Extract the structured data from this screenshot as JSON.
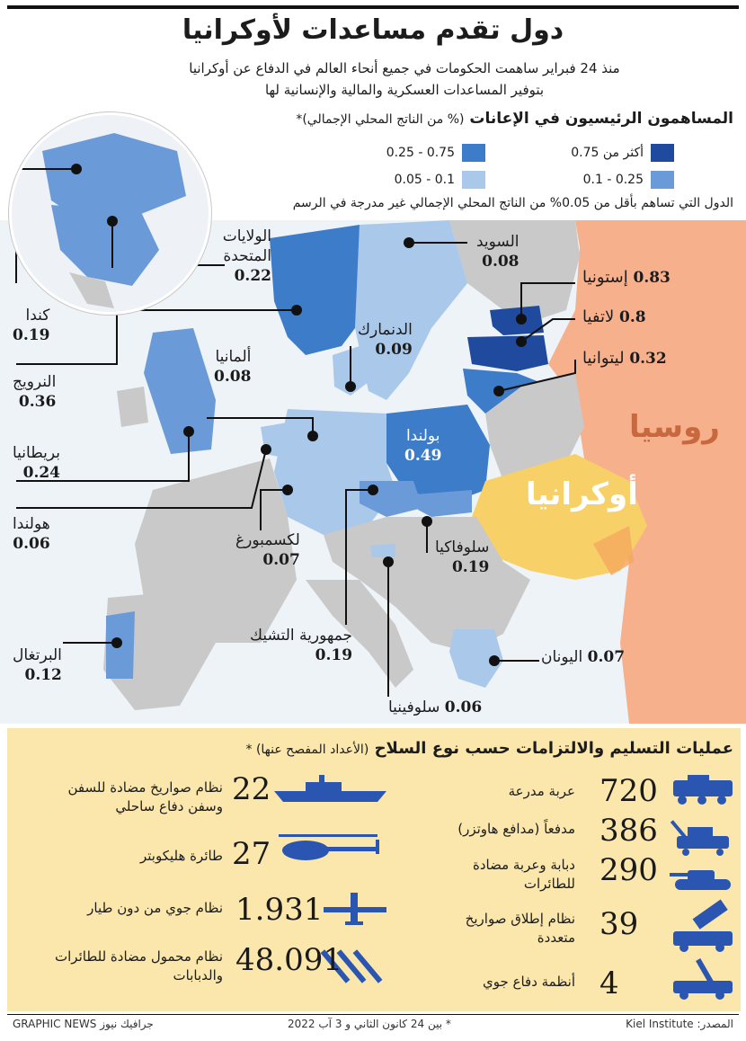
{
  "header": {
    "title": "دول تقدم مساعدات لأوكرانيا",
    "subtitle_line1": "منذ 24 فبراير ساهمت الحكومات في جميع أنحاء العالم في الدفاع عن أوكرانيا",
    "subtitle_line2": "بتوفير المساعدات العسكرية والمالية والإنسانية لها"
  },
  "legend": {
    "title": "المساهمون الرئيسيون في الإعانات",
    "title_paren": "(% من الناتج المحلي الإجمالي)*",
    "items": [
      {
        "label": "أكثر من 0.75",
        "color": "#1f4a9e"
      },
      {
        "label": "0.75 - 0.25",
        "color": "#3d7cc9"
      },
      {
        "label": "0.25 - 0.1",
        "color": "#6a9bd8"
      },
      {
        "label": "0.1 - 0.05",
        "color": "#a9c8ea"
      }
    ],
    "note": "الدول التي تساهم بأقل من 0.05% من الناتج المحلي الإجمالي غير مدرجة في الرسم"
  },
  "map": {
    "countries": [
      {
        "name": "الولايات",
        "name2": "المتحدة",
        "value": "0.22"
      },
      {
        "name": "كندا",
        "value": "0.19"
      },
      {
        "name": "النرويج",
        "value": "0.36"
      },
      {
        "name": "بريطانيا",
        "value": "0.24"
      },
      {
        "name": "هولندا",
        "value": "0.06"
      },
      {
        "name": "البرتغال",
        "value": "0.12"
      },
      {
        "name": "السويد",
        "value": "0.08"
      },
      {
        "name": "إستونيا",
        "value": "0.83"
      },
      {
        "name": "لاتفيا",
        "value": "0.8"
      },
      {
        "name": "ليتوانيا",
        "value": "0.32"
      },
      {
        "name": "الدنمارك",
        "value": "0.09"
      },
      {
        "name": "ألمانيا",
        "value": "0.08"
      },
      {
        "name": "بولندا",
        "value": "0.49"
      },
      {
        "name": "لكسمبورغ",
        "value": "0.07"
      },
      {
        "name": "سلوفاكيا",
        "value": "0.19"
      },
      {
        "name": "جمهورية التشيك",
        "value": "0.19"
      },
      {
        "name": "اليونان",
        "value": "0.07"
      },
      {
        "name": "سلوفينيا",
        "value": "0.06"
      }
    ],
    "russia": "روسيا",
    "ukraine": "أوكرانيا"
  },
  "weapons": {
    "title": "عمليات التسليم والالتزامات حسب نوع السلاح",
    "title_paren": "(الأعداد المفصح عنها) *",
    "left": [
      {
        "num": "22",
        "label1": "نظام صواريخ مضادة للسفن",
        "label2": "وسفن دفاع ساحلي",
        "icon": "ship-icon"
      },
      {
        "num": "27",
        "label1": "طائرة هليكوبتر",
        "label2": "",
        "icon": "helicopter-icon"
      },
      {
        "num": "1.931",
        "label1": "نظام جوي من دون طيار",
        "label2": "",
        "icon": "drone-icon"
      },
      {
        "num": "48.091",
        "label1": "نظام محمول مضادة للطائرات",
        "label2": "والدبابات",
        "icon": "missiles-icon"
      }
    ],
    "right": [
      {
        "num": "720",
        "label1": "عربة مدرعة",
        "label2": "",
        "icon": "armored-vehicle-icon"
      },
      {
        "num": "386",
        "label1": "مدفعاً (مدافع هاوتزر)",
        "label2": "",
        "icon": "howitzer-icon"
      },
      {
        "num": "290",
        "label1": "دبابة وعربة مضادة",
        "label2": "للطائرات",
        "icon": "tank-icon"
      },
      {
        "num": "39",
        "label1": "نظام إطلاق صواريخ",
        "label2": "متعددة",
        "icon": "rocket-launcher-icon"
      },
      {
        "num": "4",
        "label1": "أنظمة دفاع جوي",
        "label2": "",
        "icon": "air-defense-icon"
      }
    ]
  },
  "footer": {
    "source": "المصدر: Kiel Institute",
    "note": "* بين 24 كانون الثاني و 3 آب 2022",
    "credit": "GRAPHIC NEWS جرافيك نيوز"
  },
  "colors": {
    "dark_blue": "#1f4a9e",
    "mid_blue": "#3d7cc9",
    "light_blue": "#6a9bd8",
    "pale_blue": "#a9c8ea",
    "russia": "#f7b08c",
    "ukraine": "#f8d068",
    "gray": "#c9c9c9",
    "sea": "#eef3f8",
    "icon_blue": "#2a56b2",
    "panel": "#fbe7ab"
  }
}
